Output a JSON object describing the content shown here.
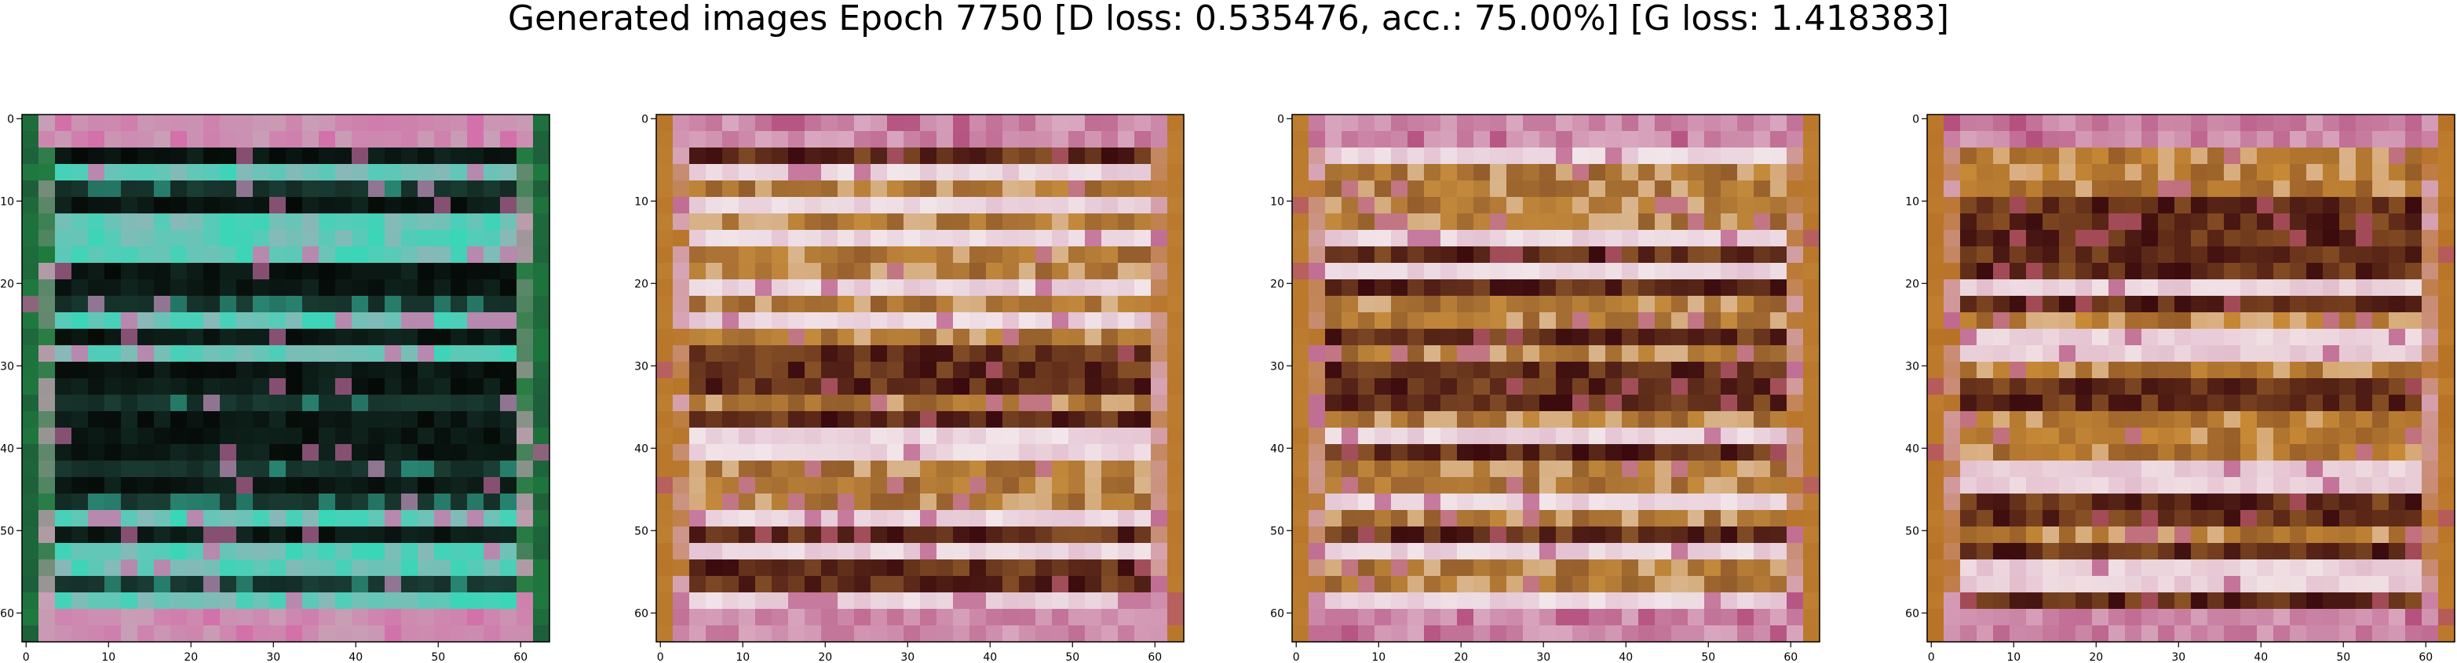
{
  "figure": {
    "title": "Generated images Epoch 7750 [D loss: 0.535476, acc.: 75.00%] [G loss: 1.418383]"
  },
  "panels": [
    {
      "name": "generated-image-1",
      "palette": {
        "base": "#1a3d34",
        "dark": "#050a07",
        "light": "#39d6b8",
        "accent": "#c8a0b6",
        "pink": "#d46aa8",
        "edge": "#1f7a3e"
      },
      "x_ticks": [
        "0",
        "10",
        "20",
        "30",
        "40",
        "50",
        "60"
      ],
      "y_ticks": [
        "0",
        "10",
        "20",
        "30",
        "40",
        "50",
        "60"
      ]
    },
    {
      "name": "generated-image-2",
      "palette": {
        "base": "#c48a3c",
        "dark": "#3a0a0e",
        "light": "#f2e6ea",
        "accent": "#d9a8c0",
        "pink": "#b24a7a",
        "edge": "#b8762a"
      },
      "x_ticks": [
        "0",
        "10",
        "20",
        "30",
        "40",
        "50",
        "60"
      ],
      "y_ticks": [
        "0",
        "10",
        "20",
        "30",
        "40",
        "50",
        "60"
      ]
    },
    {
      "name": "generated-image-3",
      "palette": {
        "base": "#c48a3c",
        "dark": "#3a0a0e",
        "light": "#f2e6ea",
        "accent": "#d9a8c0",
        "pink": "#b24a7a",
        "edge": "#b8762a"
      },
      "x_ticks": [
        "0",
        "10",
        "20",
        "30",
        "40",
        "50",
        "60"
      ],
      "y_ticks": [
        "0",
        "10",
        "20",
        "30",
        "40",
        "50",
        "60"
      ]
    },
    {
      "name": "generated-image-4",
      "palette": {
        "base": "#c88a36",
        "dark": "#3a0a0e",
        "light": "#f0e0e4",
        "accent": "#d8a4bc",
        "pink": "#b04476",
        "edge": "#b87226"
      },
      "x_ticks": [
        "0",
        "10",
        "20",
        "30",
        "40",
        "50",
        "60"
      ],
      "y_ticks": [
        "0",
        "10",
        "20",
        "30",
        "40",
        "50",
        "60"
      ]
    }
  ]
}
